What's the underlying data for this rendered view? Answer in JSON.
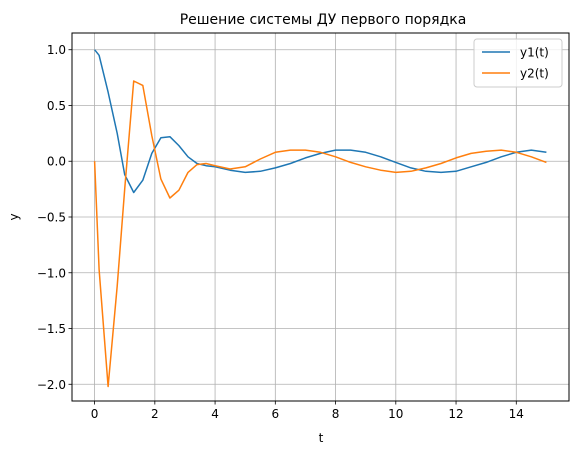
{
  "chart_data": {
    "type": "line",
    "title": "Решение системы ДУ первого порядка",
    "xlabel": "t",
    "ylabel": "y",
    "xlim": [
      -0.75,
      15.75
    ],
    "ylim": [
      -2.15,
      1.15
    ],
    "xticks": [
      0,
      2,
      4,
      6,
      8,
      10,
      12,
      14
    ],
    "xtick_labels": [
      "0",
      "2",
      "4",
      "6",
      "8",
      "10",
      "12",
      "14"
    ],
    "yticks": [
      -2.0,
      -1.5,
      -1.0,
      -0.5,
      0.0,
      0.5,
      1.0
    ],
    "ytick_labels": [
      "−2.0",
      "−1.5",
      "−1.0",
      "−0.5",
      "0.0",
      "0.5",
      "1.0"
    ],
    "grid": true,
    "legend_position": "top-right",
    "colors": {
      "y1": "#1f77b4",
      "y2": "#ff7f0e",
      "grid": "#b0b0b0"
    },
    "series": [
      {
        "name": "y1(t)",
        "color": "#1f77b4",
        "x": [
          0,
          0.15,
          0.45,
          0.75,
          1.0,
          1.3,
          1.6,
          1.9,
          2.2,
          2.5,
          2.8,
          3.1,
          3.4,
          3.7,
          4.0,
          4.5,
          5.0,
          5.5,
          6.0,
          6.5,
          7.0,
          7.5,
          8.0,
          8.5,
          9.0,
          9.5,
          10.0,
          10.5,
          11.0,
          11.5,
          12.0,
          12.5,
          13.0,
          13.5,
          14.0,
          14.5,
          15.0
        ],
        "y": [
          1.0,
          0.95,
          0.62,
          0.25,
          -0.12,
          -0.28,
          -0.17,
          0.07,
          0.21,
          0.22,
          0.14,
          0.04,
          -0.02,
          -0.04,
          -0.05,
          -0.08,
          -0.1,
          -0.09,
          -0.06,
          -0.02,
          0.03,
          0.07,
          0.1,
          0.1,
          0.08,
          0.04,
          -0.01,
          -0.06,
          -0.09,
          -0.1,
          -0.09,
          -0.05,
          -0.01,
          0.04,
          0.08,
          0.1,
          0.08
        ]
      },
      {
        "name": "y2(t)",
        "color": "#ff7f0e",
        "x": [
          0,
          0.15,
          0.45,
          0.75,
          1.0,
          1.3,
          1.6,
          1.9,
          2.2,
          2.5,
          2.8,
          3.1,
          3.4,
          3.7,
          4.0,
          4.5,
          5.0,
          5.5,
          6.0,
          6.5,
          7.0,
          7.5,
          8.0,
          8.5,
          9.0,
          9.5,
          10.0,
          10.5,
          11.0,
          11.5,
          12.0,
          12.5,
          13.0,
          13.5,
          14.0,
          14.5,
          15.0
        ],
        "y": [
          0.0,
          -0.97,
          -2.02,
          -1.12,
          -0.25,
          0.72,
          0.68,
          0.23,
          -0.16,
          -0.33,
          -0.26,
          -0.1,
          -0.03,
          -0.02,
          -0.04,
          -0.07,
          -0.05,
          0.02,
          0.08,
          0.1,
          0.1,
          0.08,
          0.04,
          -0.01,
          -0.05,
          -0.08,
          -0.1,
          -0.09,
          -0.06,
          -0.02,
          0.03,
          0.07,
          0.09,
          0.1,
          0.08,
          0.04,
          -0.01
        ]
      }
    ]
  }
}
